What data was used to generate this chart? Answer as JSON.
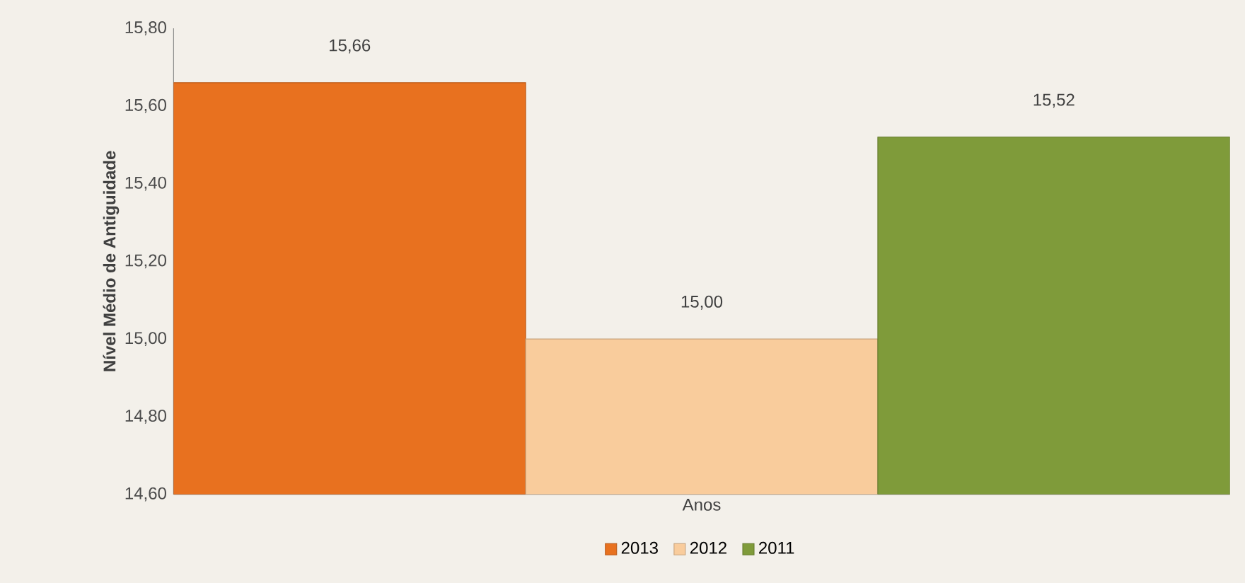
{
  "chart_data": {
    "type": "bar",
    "xlabel": "Anos",
    "ylabel": "Nível Médio de Antiguidade",
    "categories": [
      null
    ],
    "series": [
      {
        "name": "2013",
        "color": "#e8711f",
        "values": [
          15.66
        ],
        "value_labels": [
          "15,66"
        ]
      },
      {
        "name": "2012",
        "color": "#f9cc9c",
        "values": [
          15.0
        ],
        "value_labels": [
          "15,00"
        ]
      },
      {
        "name": "2011",
        "color": "#7f9b3a",
        "values": [
          15.52
        ],
        "value_labels": [
          "15,52"
        ]
      }
    ],
    "ylim": [
      14.6,
      15.8
    ],
    "yticks": [
      {
        "value": 14.6,
        "label": "14,60"
      },
      {
        "value": 14.8,
        "label": "14,80"
      },
      {
        "value": 15.0,
        "label": "15,00"
      },
      {
        "value": 15.2,
        "label": "15,20"
      },
      {
        "value": 15.4,
        "label": "15,40"
      },
      {
        "value": 15.6,
        "label": "15,60"
      },
      {
        "value": 15.8,
        "label": "15,80"
      }
    ],
    "legend": "bottom",
    "tick_labels": "y"
  }
}
